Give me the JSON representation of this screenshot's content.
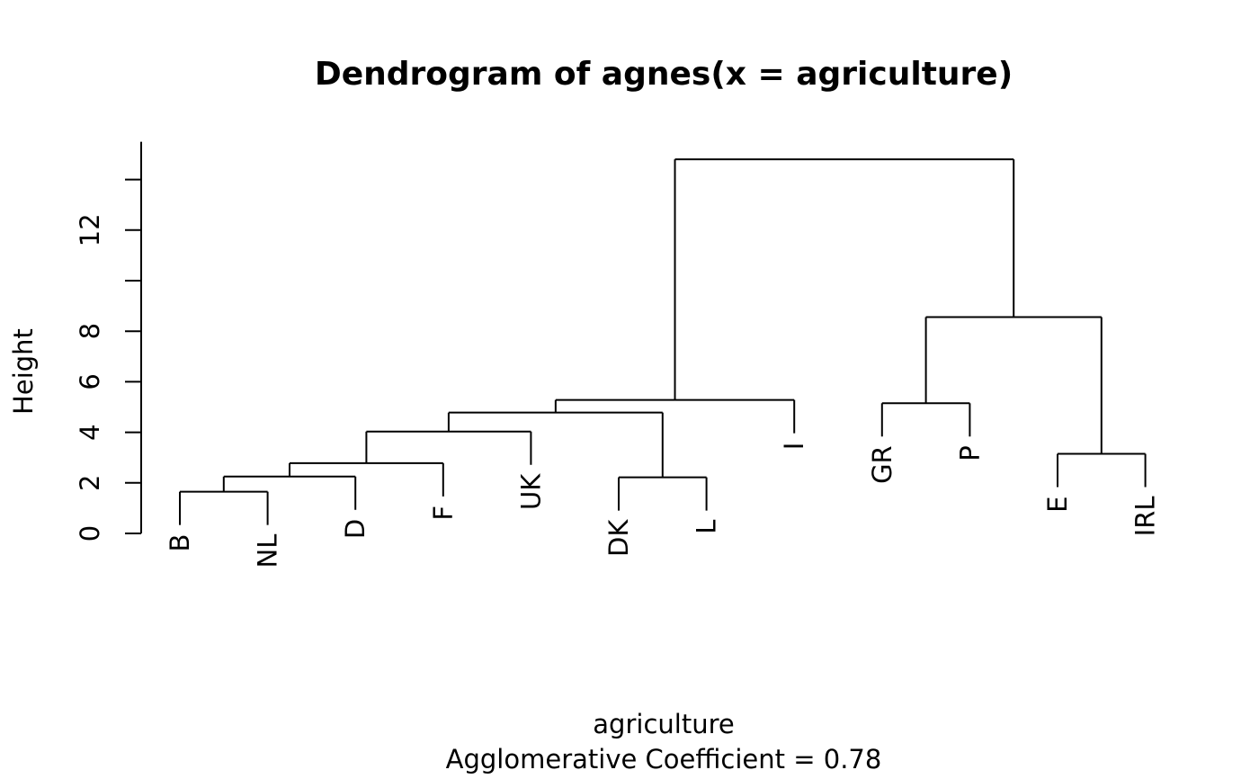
{
  "chart_data": {
    "type": "dendrogram",
    "title": "Dendrogram of  agnes(x = agriculture)",
    "xlabel": "agriculture",
    "sublabel": "Agglomerative Coefficient =  0.78",
    "ylabel": "Height",
    "ylim": [
      0,
      15.5
    ],
    "y_ticks": [
      0,
      2,
      4,
      6,
      8,
      10,
      12,
      14
    ],
    "y_tick_labels": [
      "0",
      "2",
      "4",
      "6",
      "8",
      "",
      "12",
      ""
    ],
    "leaf_order": [
      "B",
      "NL",
      "D",
      "F",
      "UK",
      "DK",
      "L",
      "I",
      "GR",
      "P",
      "E",
      "IRL"
    ],
    "merges": [
      {
        "left": "B",
        "right": "NL",
        "height": 1.65
      },
      {
        "left": "B+NL",
        "right": "D",
        "height": 2.25
      },
      {
        "left": "B+NL+D",
        "right": "F",
        "height": 2.78
      },
      {
        "left": "B+NL+D+F",
        "right": "UK",
        "height": 4.03
      },
      {
        "left": "DK",
        "right": "L",
        "height": 2.22
      },
      {
        "left": "B+NL+D+F+UK",
        "right": "DK+L",
        "height": 4.78
      },
      {
        "left": "B+NL+D+F+UK+DK+L",
        "right": "I",
        "height": 5.28
      },
      {
        "left": "GR",
        "right": "P",
        "height": 5.15
      },
      {
        "left": "E",
        "right": "IRL",
        "height": 3.15
      },
      {
        "left": "GR+P",
        "right": "E+IRL",
        "height": 8.56
      },
      {
        "left": "B+NL+D+F+UK+DK+L+I",
        "right": "GR+P+E+IRL",
        "height": 14.8
      }
    ]
  }
}
